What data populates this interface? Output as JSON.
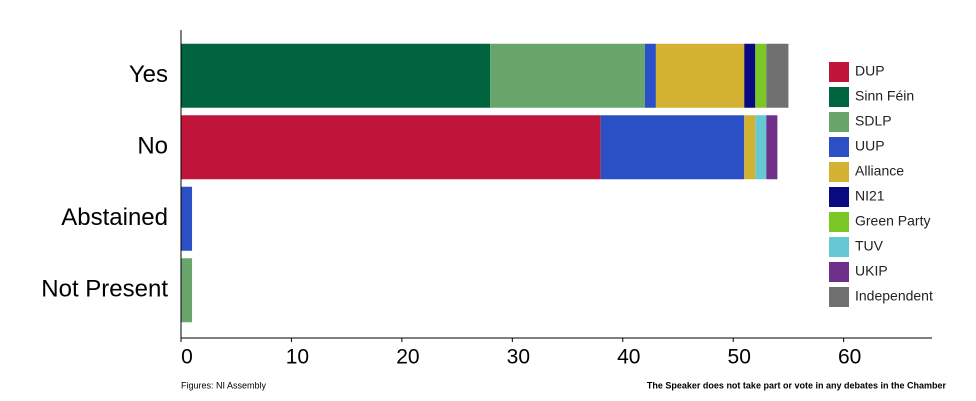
{
  "chart_data": {
    "type": "stacked-barh",
    "categories": [
      "Yes",
      "No",
      "Abstained",
      "Not Present"
    ],
    "series": [
      {
        "name": "DUP",
        "color": "#c0153a",
        "values": [
          null,
          38,
          null,
          null
        ]
      },
      {
        "name": "Sinn Féin",
        "color": "#00643f",
        "values": [
          28,
          null,
          null,
          null
        ]
      },
      {
        "name": "SDLP",
        "color": "#68a66b",
        "values": [
          14,
          null,
          null,
          1
        ]
      },
      {
        "name": "UUP",
        "color": "#2b4fc4",
        "values": [
          1,
          13,
          1,
          null
        ]
      },
      {
        "name": "Alliance",
        "color": "#d3b232",
        "values": [
          8,
          1,
          null,
          null
        ]
      },
      {
        "name": "NI21",
        "color": "#0a0a80",
        "values": [
          1,
          null,
          null,
          null
        ]
      },
      {
        "name": "Green Party",
        "color": "#7ac726",
        "values": [
          1,
          null,
          null,
          null
        ]
      },
      {
        "name": "TUV",
        "color": "#66c8d2",
        "values": [
          null,
          1,
          null,
          null
        ]
      },
      {
        "name": "UKIP",
        "color": "#70308a",
        "values": [
          null,
          1,
          null,
          null
        ]
      },
      {
        "name": "Independent",
        "color": "#707070",
        "values": [
          2,
          null,
          null,
          null
        ]
      }
    ],
    "xlim": [
      0,
      68
    ],
    "xticks": [
      0,
      10,
      20,
      30,
      40,
      50,
      60
    ],
    "source": "Figures: NI Assembly",
    "note": "The Speaker does not take part or vote in any debates in the Chamber"
  }
}
